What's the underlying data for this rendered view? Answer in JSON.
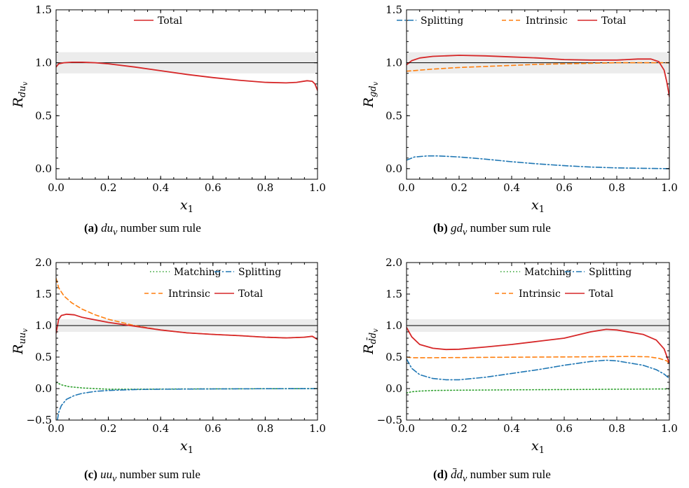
{
  "colors": {
    "total": "#d62728",
    "intrinsic": "#ff7f0e",
    "splitting": "#1f77b4",
    "matching": "#2ca02c",
    "band": "#ececec",
    "reference": "#000000"
  },
  "chart_data": [
    {
      "id": "a",
      "type": "line",
      "xlabel": "x",
      "xlabel_sub": "1",
      "ylabel": "R",
      "ylabel_sub": "du",
      "ylabel_subsub": "v",
      "xlim": [
        0,
        1
      ],
      "ylim": [
        -0.1,
        1.5
      ],
      "xticks": [
        "0.0",
        "0.2",
        "0.4",
        "0.6",
        "0.8",
        "1.0"
      ],
      "yticks": [
        "0.0",
        "0.5",
        "1.0",
        "1.5"
      ],
      "band": [
        0.9,
        1.1
      ],
      "reference_line": 1.0,
      "legend_placement": "top-center",
      "caption": {
        "tag": "(a)",
        "math": "du",
        "sub": "v",
        "text": "number sum rule"
      },
      "series": [
        {
          "name": "Total",
          "style": "solid",
          "color_key": "total",
          "points": [
            [
              0,
              0.96
            ],
            [
              0.01,
              0.99
            ],
            [
              0.03,
              1.0
            ],
            [
              0.06,
              1.005
            ],
            [
              0.1,
              1.005
            ],
            [
              0.15,
              1.0
            ],
            [
              0.2,
              0.99
            ],
            [
              0.3,
              0.96
            ],
            [
              0.4,
              0.925
            ],
            [
              0.5,
              0.89
            ],
            [
              0.6,
              0.86
            ],
            [
              0.7,
              0.835
            ],
            [
              0.8,
              0.815
            ],
            [
              0.88,
              0.81
            ],
            [
              0.92,
              0.815
            ],
            [
              0.96,
              0.83
            ],
            [
              0.98,
              0.825
            ],
            [
              0.99,
              0.8
            ],
            [
              1.0,
              0.74
            ]
          ]
        }
      ]
    },
    {
      "id": "b",
      "type": "line",
      "xlabel": "x",
      "xlabel_sub": "1",
      "ylabel": "R",
      "ylabel_sub": "gd",
      "ylabel_subsub": "v",
      "xlim": [
        0,
        1
      ],
      "ylim": [
        -0.1,
        1.5
      ],
      "xticks": [
        "0.0",
        "0.2",
        "0.4",
        "0.6",
        "0.8",
        "1.0"
      ],
      "yticks": [
        "0.0",
        "0.5",
        "1.0",
        "1.5"
      ],
      "band": [
        0.9,
        1.1
      ],
      "reference_line": 1.0,
      "legend_placement": "top",
      "caption": {
        "tag": "(b)",
        "math": "gd",
        "sub": "v",
        "text": "number sum rule"
      },
      "series": [
        {
          "name": "Splitting",
          "style": "dashdot",
          "color_key": "splitting",
          "points": [
            [
              0,
              0.08
            ],
            [
              0.03,
              0.11
            ],
            [
              0.08,
              0.12
            ],
            [
              0.12,
              0.12
            ],
            [
              0.2,
              0.11
            ],
            [
              0.3,
              0.09
            ],
            [
              0.4,
              0.065
            ],
            [
              0.5,
              0.045
            ],
            [
              0.6,
              0.028
            ],
            [
              0.7,
              0.015
            ],
            [
              0.8,
              0.007
            ],
            [
              0.9,
              0.003
            ],
            [
              1.0,
              0.0
            ]
          ]
        },
        {
          "name": "Intrinsic",
          "style": "dashed",
          "color_key": "intrinsic",
          "points": [
            [
              0,
              0.92
            ],
            [
              0.1,
              0.94
            ],
            [
              0.2,
              0.955
            ],
            [
              0.3,
              0.965
            ],
            [
              0.4,
              0.975
            ],
            [
              0.5,
              0.985
            ],
            [
              0.6,
              0.99
            ],
            [
              0.7,
              0.995
            ],
            [
              0.8,
              1.0
            ],
            [
              0.9,
              1.0
            ],
            [
              1.0,
              1.0
            ]
          ]
        },
        {
          "name": "Total",
          "style": "solid",
          "color_key": "total",
          "points": [
            [
              0,
              0.98
            ],
            [
              0.02,
              1.02
            ],
            [
              0.05,
              1.045
            ],
            [
              0.1,
              1.06
            ],
            [
              0.2,
              1.07
            ],
            [
              0.3,
              1.065
            ],
            [
              0.4,
              1.055
            ],
            [
              0.5,
              1.045
            ],
            [
              0.6,
              1.03
            ],
            [
              0.7,
              1.025
            ],
            [
              0.8,
              1.025
            ],
            [
              0.88,
              1.035
            ],
            [
              0.93,
              1.035
            ],
            [
              0.96,
              1.01
            ],
            [
              0.98,
              0.93
            ],
            [
              0.99,
              0.82
            ],
            [
              1.0,
              0.68
            ]
          ]
        }
      ]
    },
    {
      "id": "c",
      "type": "line",
      "xlabel": "x",
      "xlabel_sub": "1",
      "ylabel": "R",
      "ylabel_sub": "uu",
      "ylabel_subsub": "v",
      "xlim": [
        0,
        1
      ],
      "ylim": [
        -0.5,
        2.0
      ],
      "xticks": [
        "0.0",
        "0.2",
        "0.4",
        "0.6",
        "0.8",
        "1.0"
      ],
      "yticks": [
        "−0.5",
        "0.0",
        "0.5",
        "1.0",
        "1.5",
        "2.0"
      ],
      "band": [
        0.9,
        1.1
      ],
      "reference_line": 1.0,
      "legend_placement": "top-right",
      "caption": {
        "tag": "(c)",
        "math": "uu",
        "sub": "v",
        "text": "number sum rule"
      },
      "series": [
        {
          "name": "Matching",
          "style": "dotted",
          "color_key": "matching",
          "points": [
            [
              0,
              0.1
            ],
            [
              0.02,
              0.06
            ],
            [
              0.05,
              0.03
            ],
            [
              0.1,
              0.01
            ],
            [
              0.2,
              -0.01
            ],
            [
              0.3,
              -0.01
            ],
            [
              0.4,
              -0.008
            ],
            [
              0.6,
              -0.004
            ],
            [
              0.8,
              -0.002
            ],
            [
              1.0,
              0.0
            ]
          ]
        },
        {
          "name": "Splitting",
          "style": "dashdot",
          "color_key": "splitting",
          "points": [
            [
              0.005,
              -0.5
            ],
            [
              0.01,
              -0.38
            ],
            [
              0.02,
              -0.27
            ],
            [
              0.04,
              -0.17
            ],
            [
              0.07,
              -0.11
            ],
            [
              0.1,
              -0.075
            ],
            [
              0.15,
              -0.045
            ],
            [
              0.2,
              -0.03
            ],
            [
              0.3,
              -0.015
            ],
            [
              0.4,
              -0.01
            ],
            [
              0.6,
              -0.005
            ],
            [
              0.8,
              -0.002
            ],
            [
              1.0,
              0.0
            ]
          ]
        },
        {
          "name": "Intrinsic",
          "style": "dashed",
          "color_key": "intrinsic",
          "points": [
            [
              0,
              1.75
            ],
            [
              0.01,
              1.6
            ],
            [
              0.03,
              1.47
            ],
            [
              0.06,
              1.36
            ],
            [
              0.1,
              1.26
            ],
            [
              0.15,
              1.17
            ],
            [
              0.2,
              1.1
            ],
            [
              0.25,
              1.05
            ],
            [
              0.3,
              1.0
            ],
            [
              0.4,
              0.93
            ],
            [
              0.5,
              0.885
            ],
            [
              0.6,
              0.86
            ],
            [
              0.7,
              0.84
            ],
            [
              0.8,
              0.815
            ],
            [
              0.88,
              0.805
            ],
            [
              0.95,
              0.815
            ],
            [
              0.98,
              0.83
            ],
            [
              1.0,
              0.78
            ]
          ]
        },
        {
          "name": "Total",
          "style": "solid",
          "color_key": "total",
          "points": [
            [
              0,
              0.88
            ],
            [
              0.01,
              1.1
            ],
            [
              0.02,
              1.16
            ],
            [
              0.04,
              1.18
            ],
            [
              0.07,
              1.17
            ],
            [
              0.1,
              1.13
            ],
            [
              0.15,
              1.09
            ],
            [
              0.2,
              1.05
            ],
            [
              0.3,
              0.99
            ],
            [
              0.4,
              0.93
            ],
            [
              0.5,
              0.885
            ],
            [
              0.6,
              0.86
            ],
            [
              0.7,
              0.84
            ],
            [
              0.8,
              0.815
            ],
            [
              0.88,
              0.805
            ],
            [
              0.95,
              0.815
            ],
            [
              0.98,
              0.83
            ],
            [
              1.0,
              0.78
            ]
          ]
        }
      ]
    },
    {
      "id": "d",
      "type": "line",
      "xlabel": "x",
      "xlabel_sub": "1",
      "ylabel": "R",
      "ylabel_sub": "d̄d",
      "ylabel_subsub": "v",
      "xlim": [
        0,
        1
      ],
      "ylim": [
        -0.5,
        2.0
      ],
      "xticks": [
        "0.0",
        "0.2",
        "0.4",
        "0.6",
        "0.8",
        "1.0"
      ],
      "yticks": [
        "−0.5",
        "0.0",
        "0.5",
        "1.0",
        "1.5",
        "2.0"
      ],
      "band": [
        0.9,
        1.1
      ],
      "reference_line": 1.0,
      "legend_placement": "top-right",
      "caption": {
        "tag": "(d)",
        "math": "d̄d",
        "sub": "v",
        "text": "number sum rule"
      },
      "series": [
        {
          "name": "Matching",
          "style": "dotted",
          "color_key": "matching",
          "points": [
            [
              0,
              -0.07
            ],
            [
              0.02,
              -0.05
            ],
            [
              0.05,
              -0.04
            ],
            [
              0.1,
              -0.03
            ],
            [
              0.2,
              -0.025
            ],
            [
              0.4,
              -0.02
            ],
            [
              0.6,
              -0.015
            ],
            [
              0.8,
              -0.01
            ],
            [
              1.0,
              -0.005
            ]
          ]
        },
        {
          "name": "Splitting",
          "style": "dashdot",
          "color_key": "splitting",
          "points": [
            [
              0,
              0.47
            ],
            [
              0.02,
              0.32
            ],
            [
              0.05,
              0.22
            ],
            [
              0.1,
              0.16
            ],
            [
              0.15,
              0.14
            ],
            [
              0.2,
              0.14
            ],
            [
              0.3,
              0.18
            ],
            [
              0.4,
              0.24
            ],
            [
              0.5,
              0.3
            ],
            [
              0.6,
              0.37
            ],
            [
              0.7,
              0.43
            ],
            [
              0.76,
              0.45
            ],
            [
              0.8,
              0.44
            ],
            [
              0.9,
              0.37
            ],
            [
              0.95,
              0.3
            ],
            [
              0.98,
              0.23
            ],
            [
              1.0,
              0.16
            ]
          ]
        },
        {
          "name": "Intrinsic",
          "style": "dashed",
          "color_key": "intrinsic",
          "points": [
            [
              0,
              0.5
            ],
            [
              0.02,
              0.49
            ],
            [
              0.1,
              0.49
            ],
            [
              0.3,
              0.495
            ],
            [
              0.5,
              0.5
            ],
            [
              0.7,
              0.505
            ],
            [
              0.85,
              0.51
            ],
            [
              0.92,
              0.505
            ],
            [
              0.96,
              0.48
            ],
            [
              0.99,
              0.44
            ],
            [
              1.0,
              0.4
            ]
          ]
        },
        {
          "name": "Total",
          "style": "solid",
          "color_key": "total",
          "points": [
            [
              0,
              0.97
            ],
            [
              0.02,
              0.82
            ],
            [
              0.05,
              0.7
            ],
            [
              0.1,
              0.64
            ],
            [
              0.15,
              0.62
            ],
            [
              0.2,
              0.625
            ],
            [
              0.3,
              0.66
            ],
            [
              0.4,
              0.7
            ],
            [
              0.5,
              0.75
            ],
            [
              0.6,
              0.8
            ],
            [
              0.7,
              0.9
            ],
            [
              0.76,
              0.94
            ],
            [
              0.8,
              0.93
            ],
            [
              0.9,
              0.86
            ],
            [
              0.95,
              0.77
            ],
            [
              0.98,
              0.63
            ],
            [
              1.0,
              0.4
            ]
          ]
        }
      ]
    }
  ]
}
